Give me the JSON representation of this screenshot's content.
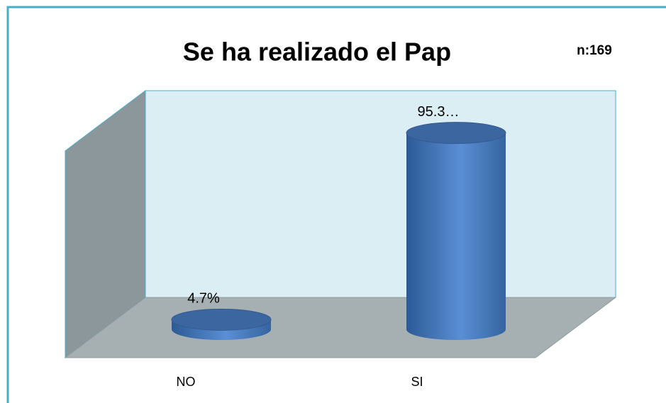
{
  "chart_data": {
    "type": "bar3d",
    "title": "Se ha realizado el Pap",
    "annotation": "n:169",
    "categories": [
      "NO",
      "SI"
    ],
    "values": [
      4.7,
      95.3
    ],
    "value_labels": [
      "4.7%",
      "95.3…"
    ],
    "color": "#4f81bd",
    "ylim": [
      0,
      100
    ]
  }
}
